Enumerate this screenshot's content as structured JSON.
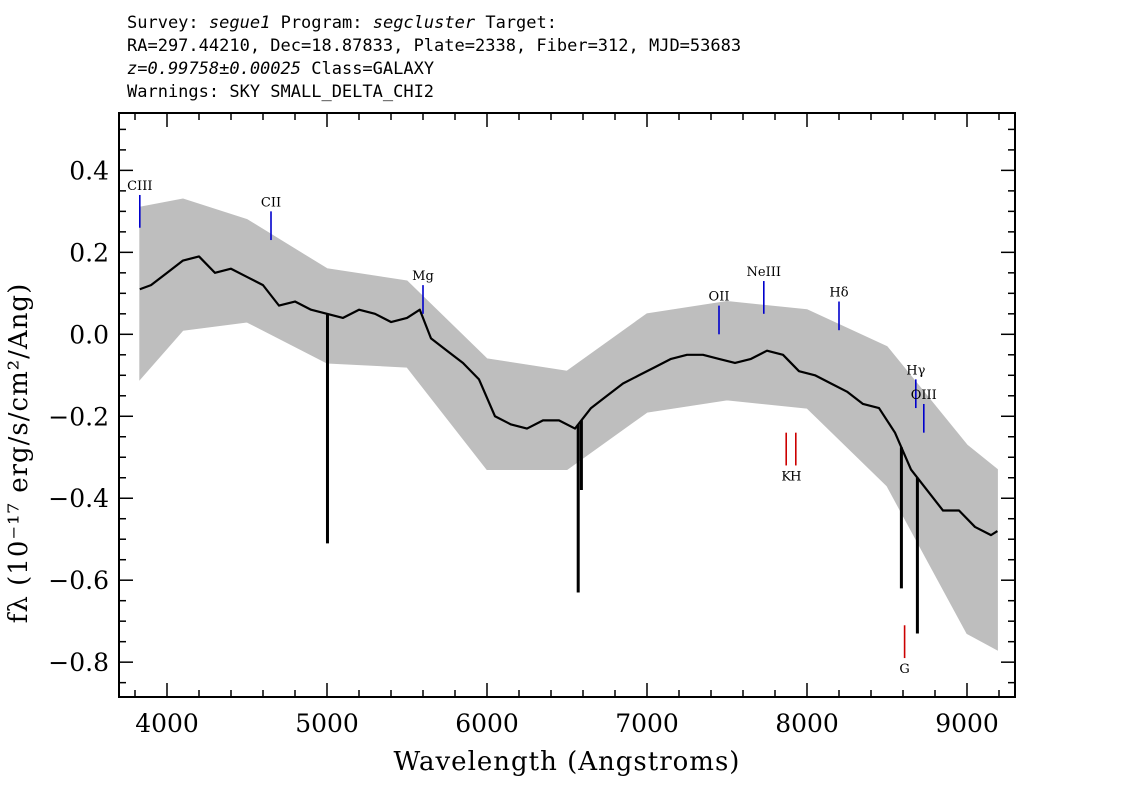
{
  "header": {
    "survey_label": "Survey:",
    "survey": "segue1",
    "program_label": "Program:",
    "program": "segcluster",
    "target_label": "Target:",
    "coords": "RA=297.44210, Dec=18.87833, Plate=2338, Fiber=312, MJD=53683",
    "redshift": "z=0.99758±0.00025",
    "class": "Class=GALAXY",
    "warnings": "Warnings: SKY SMALL_DELTA_CHI2"
  },
  "chart_data": {
    "type": "line",
    "xlabel": "Wavelength (Angstroms)",
    "ylabel": "fλ (10⁻¹⁷ erg/s/cm²/Ang)",
    "xlim": [
      3700,
      9300
    ],
    "ylim": [
      -0.885,
      0.54
    ],
    "x_ticks": [
      4000,
      5000,
      6000,
      7000,
      8000,
      9000
    ],
    "y_ticks": [
      0.4,
      0.2,
      0.0,
      -0.2,
      -0.4,
      -0.6,
      -0.8
    ],
    "x_tick_labels": [
      "4000",
      "5000",
      "6000",
      "7000",
      "8000",
      "9000"
    ],
    "y_tick_labels": [
      "0.4",
      "0.2",
      "0.0",
      "−0.2",
      "−0.4",
      "−0.6",
      "−0.8"
    ],
    "grid": false,
    "series": [
      {
        "role": "flux",
        "color": "#000000",
        "x": [
          3830,
          3900,
          4000,
          4100,
          4200,
          4300,
          4400,
          4500,
          4600,
          4700,
          4800,
          4900,
          5000,
          5100,
          5200,
          5300,
          5400,
          5500,
          5580,
          5650,
          5750,
          5850,
          5950,
          6050,
          6150,
          6250,
          6350,
          6450,
          6550,
          6650,
          6750,
          6850,
          6950,
          7050,
          7150,
          7250,
          7350,
          7450,
          7550,
          7650,
          7750,
          7850,
          7950,
          8050,
          8150,
          8250,
          8350,
          8450,
          8550,
          8650,
          8750,
          8850,
          8950,
          9050,
          9150,
          9190
        ],
        "y": [
          0.11,
          0.12,
          0.15,
          0.18,
          0.19,
          0.15,
          0.16,
          0.14,
          0.12,
          0.07,
          0.08,
          0.06,
          0.05,
          0.04,
          0.06,
          0.05,
          0.03,
          0.04,
          0.06,
          -0.01,
          -0.04,
          -0.07,
          -0.11,
          -0.2,
          -0.22,
          -0.23,
          -0.21,
          -0.21,
          -0.23,
          -0.18,
          -0.15,
          -0.12,
          -0.1,
          -0.08,
          -0.06,
          -0.05,
          -0.05,
          -0.06,
          -0.07,
          -0.06,
          -0.04,
          -0.05,
          -0.09,
          -0.1,
          -0.12,
          -0.14,
          -0.17,
          -0.18,
          -0.24,
          -0.33,
          -0.38,
          -0.43,
          -0.43,
          -0.47,
          -0.49,
          -0.48
        ]
      },
      {
        "role": "error band",
        "color": "#bebebe",
        "x": [
          3830,
          4100,
          4500,
          5000,
          5500,
          6000,
          6500,
          7000,
          7500,
          8000,
          8500,
          9000,
          9190
        ],
        "y_upper": [
          0.31,
          0.33,
          0.28,
          0.16,
          0.13,
          -0.06,
          -0.09,
          0.05,
          0.08,
          0.06,
          -0.03,
          -0.27,
          -0.33
        ],
        "y_lower": [
          -0.11,
          0.01,
          0.03,
          -0.07,
          -0.08,
          -0.33,
          -0.33,
          -0.19,
          -0.16,
          -0.18,
          -0.37,
          -0.73,
          -0.77
        ]
      }
    ],
    "spikes": [
      {
        "x": 5003,
        "y": -0.51
      },
      {
        "x": 6570,
        "y": -0.63
      },
      {
        "x": 6590,
        "y": -0.38
      },
      {
        "x": 8590,
        "y": -0.62
      },
      {
        "x": 8690,
        "y": -0.73
      }
    ],
    "emission_lines": [
      {
        "name": "CIII",
        "x": 3830,
        "y_top": 0.34,
        "y_bottom": 0.26,
        "color": "#0000cc"
      },
      {
        "name": "CII",
        "x": 4650,
        "y_top": 0.3,
        "y_bottom": 0.23,
        "color": "#0000cc"
      },
      {
        "name": "Mg",
        "x": 5600,
        "y_top": 0.12,
        "y_bottom": 0.05,
        "color": "#0000cc"
      },
      {
        "name": "OII",
        "x": 7450,
        "y_top": 0.07,
        "y_bottom": 0.0,
        "color": "#0000cc"
      },
      {
        "name": "NeIII",
        "x": 7730,
        "y_top": 0.13,
        "y_bottom": 0.05,
        "color": "#0000cc"
      },
      {
        "name": "Hδ",
        "x": 8200,
        "y_top": 0.08,
        "y_bottom": 0.01,
        "color": "#0000cc"
      },
      {
        "name": "Hγ",
        "x": 8680,
        "y_top": -0.11,
        "y_bottom": -0.18,
        "color": "#0000cc"
      },
      {
        "name": "OIII",
        "x": 8730,
        "y_top": -0.17,
        "y_bottom": -0.24,
        "color": "#0000cc"
      }
    ],
    "absorption_lines": [
      {
        "name": "K",
        "x": 7870,
        "y_top": -0.24,
        "y_bottom": -0.32,
        "color": "#cc0000"
      },
      {
        "name": "H",
        "x": 7930,
        "y_top": -0.24,
        "y_bottom": -0.32,
        "color": "#cc0000"
      },
      {
        "name": "G",
        "x": 8610,
        "y_top": -0.71,
        "y_bottom": -0.79,
        "color": "#cc0000"
      }
    ]
  }
}
